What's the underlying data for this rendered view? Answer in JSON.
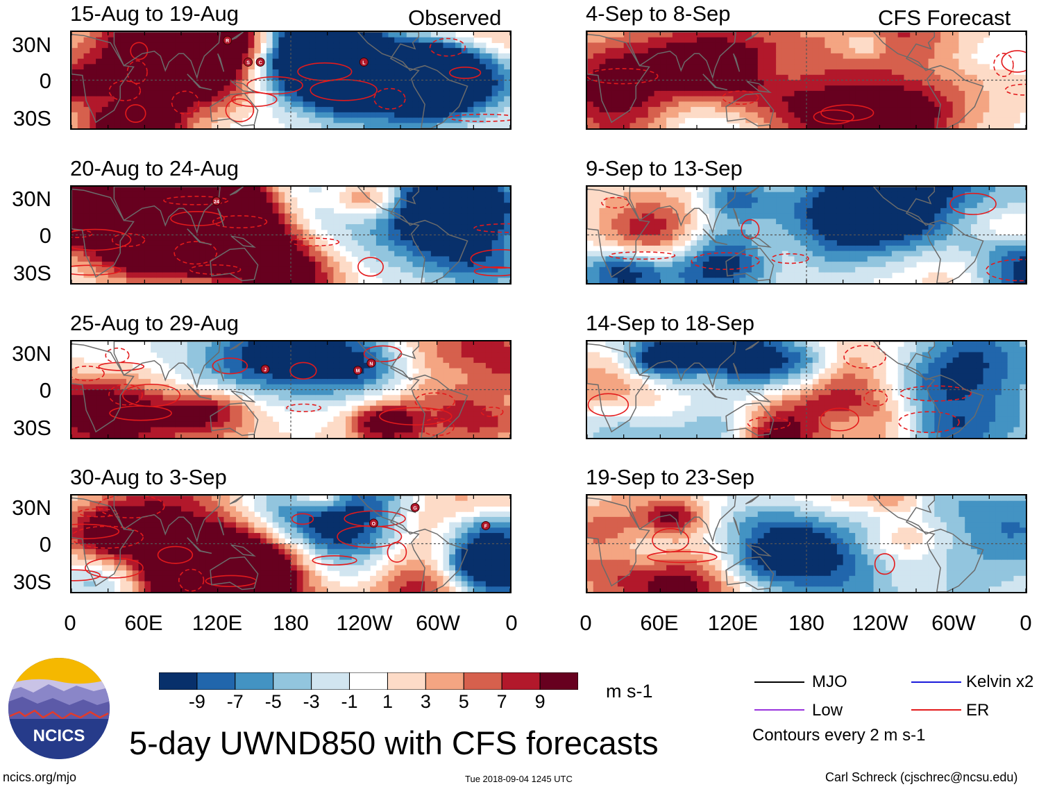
{
  "chart_data": {
    "type": "heatmap",
    "title": "5-day UWND850 with CFS forecasts",
    "column_headers": [
      "Observed",
      "CFS Forecast"
    ],
    "panels_observed": [
      "15-Aug to 19-Aug",
      "20-Aug to 24-Aug",
      "25-Aug to 29-Aug",
      "30-Aug to 3-Sep"
    ],
    "panels_forecast": [
      "4-Sep to 8-Sep",
      "9-Sep to 13-Sep",
      "14-Sep to 18-Sep",
      "19-Sep to 23-Sep"
    ],
    "y_ticks": [
      "30N",
      "0",
      "30S"
    ],
    "x_ticks": [
      "0",
      "60E",
      "120E",
      "180",
      "120W",
      "60W",
      "0"
    ],
    "x_range_deg": [
      0,
      360
    ],
    "y_range_deg": [
      -40,
      40
    ],
    "colorbar": {
      "unit": "m s-1",
      "tick_labels": [
        "-9",
        "-7",
        "-5",
        "-3",
        "-1",
        "1",
        "3",
        "5",
        "7",
        "9"
      ],
      "colors": [
        "#08306b",
        "#2166ac",
        "#4393c3",
        "#92c5de",
        "#d1e5f0",
        "#ffffff",
        "#fddbc7",
        "#f4a582",
        "#d6604d",
        "#b2182b",
        "#67001f"
      ]
    },
    "legend": [
      {
        "label": "MJO",
        "color": "#000000"
      },
      {
        "label": "Kelvin x2",
        "color": "#1a1adb"
      },
      {
        "label": "Low",
        "color": "#9933dd"
      },
      {
        "label": "ER",
        "color": "#e31a1c"
      }
    ],
    "contour_note": "Contours every 2 m s-1",
    "storm_markers": [
      {
        "panel": 0,
        "labels": [
          "R",
          "S",
          "C",
          "E",
          "L"
        ]
      },
      {
        "panel": 1,
        "labels": [
          "24"
        ]
      },
      {
        "panel": 2,
        "labels": [
          "J",
          "M",
          "N"
        ]
      },
      {
        "panel": 3,
        "labels": [
          "O",
          "G",
          "F"
        ]
      }
    ]
  },
  "footer": {
    "logo_text": "NCICS",
    "url": "ncics.org/mjo",
    "timestamp": "Tue 2018-09-04 1245 UTC",
    "author": "Carl Schreck (cjschrec@ncsu.edu)"
  }
}
